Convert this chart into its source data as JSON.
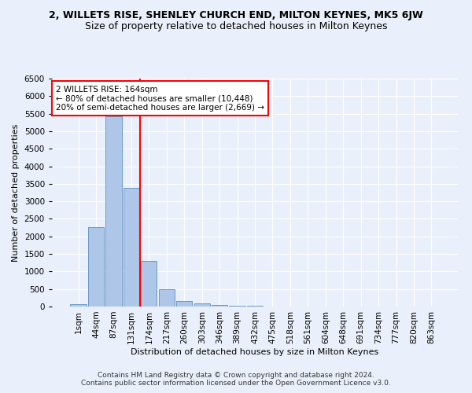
{
  "title": "2, WILLETS RISE, SHENLEY CHURCH END, MILTON KEYNES, MK5 6JW",
  "subtitle": "Size of property relative to detached houses in Milton Keynes",
  "xlabel": "Distribution of detached houses by size in Milton Keynes",
  "ylabel": "Number of detached properties",
  "footer_line1": "Contains HM Land Registry data © Crown copyright and database right 2024.",
  "footer_line2": "Contains public sector information licensed under the Open Government Licence v3.0.",
  "bin_labels": [
    "1sqm",
    "44sqm",
    "87sqm",
    "131sqm",
    "174sqm",
    "217sqm",
    "260sqm",
    "303sqm",
    "346sqm",
    "389sqm",
    "432sqm",
    "475sqm",
    "518sqm",
    "561sqm",
    "604sqm",
    "648sqm",
    "691sqm",
    "734sqm",
    "777sqm",
    "820sqm",
    "863sqm"
  ],
  "bar_values": [
    75,
    2270,
    5430,
    3380,
    1290,
    490,
    165,
    80,
    55,
    30,
    15,
    10,
    5,
    3,
    2,
    1,
    1,
    0,
    0,
    0,
    0
  ],
  "bar_color": "#aec6e8",
  "bar_edge_color": "#5a8fc0",
  "red_line_x": 3.5,
  "red_line_label": "2 WILLETS RISE: 164sqm",
  "annotation_line2": "← 80% of detached houses are smaller (10,448)",
  "annotation_line3": "20% of semi-detached houses are larger (2,669) →",
  "ylim": [
    0,
    6500
  ],
  "yticks": [
    0,
    500,
    1000,
    1500,
    2000,
    2500,
    3000,
    3500,
    4000,
    4500,
    5000,
    5500,
    6000,
    6500
  ],
  "bg_color": "#eaf0fb",
  "grid_color": "#ffffff",
  "title_fontsize": 9,
  "subtitle_fontsize": 9,
  "footer_fontsize": 6.5,
  "axis_label_fontsize": 8,
  "tick_fontsize": 7.5
}
